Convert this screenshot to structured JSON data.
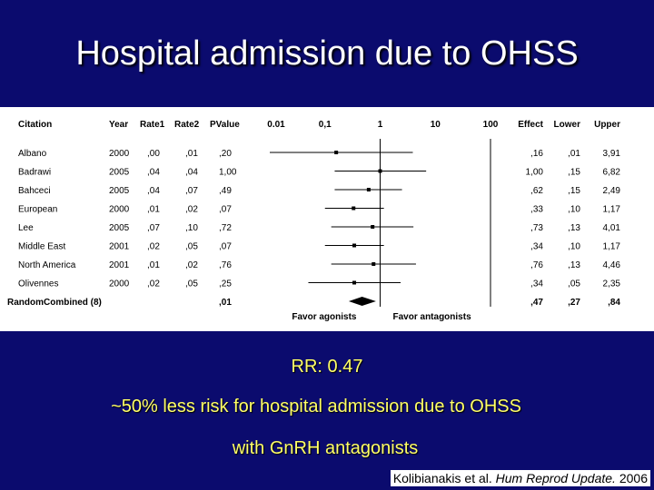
{
  "title": "Hospital admission due to OHSS",
  "rr_text": "RR: 0.47",
  "line1": "~50% less risk for hospital admission due to OHSS",
  "line2": "with GnRH antagonists",
  "citation": {
    "authors": "Kolibianakis et al.",
    "journal": "Hum Reprod Update.",
    "year": "2006"
  },
  "chart_data": {
    "type": "forest",
    "x_scale": "log",
    "xlim": [
      0.01,
      100
    ],
    "reference_line": 1,
    "columns": [
      "Citation",
      "Year",
      "Rate1",
      "Rate2",
      "PValue",
      "Effect",
      "Lower",
      "Upper"
    ],
    "x_tick_labels": [
      "0.01",
      "0,1",
      "1",
      "10",
      "100"
    ],
    "x_ticks": [
      0.01,
      0.1,
      1,
      10,
      100
    ],
    "favor_left": "Favor agonists",
    "favor_right": "Favor antagonists",
    "studies": [
      {
        "citation": "Albano",
        "year": "2000",
        "rate1": ",00",
        "rate2": ",01",
        "pvalue": ",20",
        "effect": ",16",
        "lower": ",01",
        "upper": "3,91",
        "e": 0.16,
        "l": 0.01,
        "u": 3.91
      },
      {
        "citation": "Badrawi",
        "year": "2005",
        "rate1": ",04",
        "rate2": ",04",
        "pvalue": "1,00",
        "effect": "1,00",
        "lower": ",15",
        "upper": "6,82",
        "e": 1.0,
        "l": 0.15,
        "u": 6.82
      },
      {
        "citation": "Bahceci",
        "year": "2005",
        "rate1": ",04",
        "rate2": ",07",
        "pvalue": ",49",
        "effect": ",62",
        "lower": ",15",
        "upper": "2,49",
        "e": 0.62,
        "l": 0.15,
        "u": 2.49
      },
      {
        "citation": "European",
        "year": "2000",
        "rate1": ",01",
        "rate2": ",02",
        "pvalue": ",07",
        "effect": ",33",
        "lower": ",10",
        "upper": "1,17",
        "e": 0.33,
        "l": 0.1,
        "u": 1.17
      },
      {
        "citation": "Lee",
        "year": "2005",
        "rate1": ",07",
        "rate2": ",10",
        "pvalue": ",72",
        "effect": ",73",
        "lower": ",13",
        "upper": "4,01",
        "e": 0.73,
        "l": 0.13,
        "u": 4.01
      },
      {
        "citation": "Middle East",
        "year": "2001",
        "rate1": ",02",
        "rate2": ",05",
        "pvalue": ",07",
        "effect": ",34",
        "lower": ",10",
        "upper": "1,17",
        "e": 0.34,
        "l": 0.1,
        "u": 1.17
      },
      {
        "citation": "North America",
        "year": "2001",
        "rate1": ",01",
        "rate2": ",02",
        "pvalue": ",76",
        "effect": ",76",
        "lower": ",13",
        "upper": "4,46",
        "e": 0.76,
        "l": 0.13,
        "u": 4.46
      },
      {
        "citation": "Olivennes",
        "year": "2000",
        "rate1": ",02",
        "rate2": ",05",
        "pvalue": ",25",
        "effect": ",34",
        "lower": ",05",
        "upper": "2,35",
        "e": 0.34,
        "l": 0.05,
        "u": 2.35
      }
    ],
    "combined": {
      "label1": "Random",
      "label2": "Combined (8)",
      "pvalue": ",01",
      "effect": ",47",
      "lower": ",27",
      "upper": ",84",
      "e": 0.47,
      "l": 0.27,
      "u": 0.84
    }
  }
}
